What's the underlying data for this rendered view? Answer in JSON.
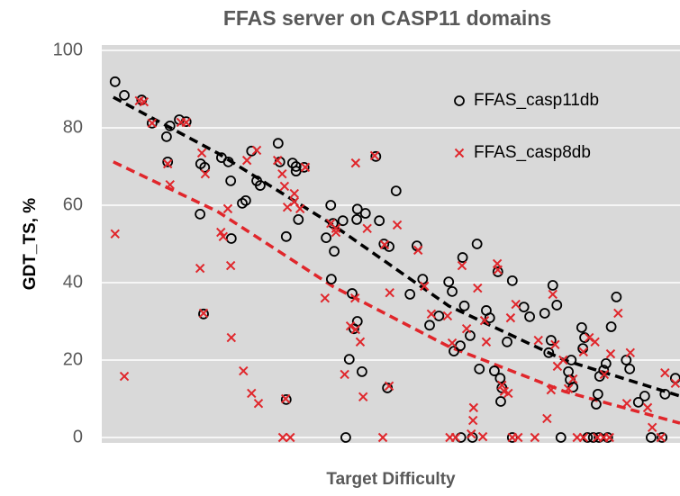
{
  "chart_data": {
    "type": "scatter",
    "title": "FFAS server on CASP11 domains",
    "x_label": "Target Difficulty",
    "y_label": "GDT_TS, %",
    "xlim": [
      0,
      100
    ],
    "ylim": [
      0,
      100
    ],
    "yticks": [
      0,
      20,
      40,
      60,
      80,
      100
    ],
    "grid": true,
    "legend": "upper right",
    "series": [
      {
        "name": "FFAS_casp11db",
        "color": "#000000",
        "marker": "circle",
        "x": [
          2.3,
          3.9,
          6.9,
          8.7,
          11.2,
          11.8,
          13.4,
          14.6,
          11.4,
          17.1,
          17.8,
          17,
          17.6,
          20.7,
          21.9,
          22.3,
          24.9,
          24.3,
          22.4,
          25.9,
          26.8,
          27.4,
          30.5,
          30.8,
          31.9,
          31.9,
          33.6,
          33.6,
          33,
          35,
          34,
          38.8,
          39.6,
          40.2,
          40,
          39.7,
          41.7,
          42.2,
          42.8,
          43.3,
          43.6,
          44.1,
          44.2,
          44.2,
          45,
          45.6,
          47.4,
          48,
          48.8,
          49.7,
          49.4,
          50.9,
          53.3,
          54.5,
          55.5,
          56.7,
          58.3,
          60,
          60.6,
          60.9,
          62,
          62.1,
          62.4,
          62.7,
          63.7,
          64.1,
          64.9,
          65.3,
          66.5,
          67.1,
          67.9,
          68.5,
          68.9,
          69,
          69.2,
          70.1,
          71,
          71,
          73,
          74,
          76.6,
          77.3,
          77.7,
          78,
          78.7,
          79.4,
          80.7,
          81,
          81.2,
          81.5,
          83,
          83.5,
          83.2,
          84,
          85,
          86,
          85.5,
          85.8,
          86.8,
          87.2,
          86.1,
          87.5,
          88.1,
          89,
          90.7,
          91.3,
          92.8,
          93.9,
          95,
          96.9,
          97.4,
          99.2
        ],
        "values": [
          91.9,
          88.4,
          87.2,
          81.2,
          77.7,
          80.5,
          82.1,
          81.6,
          71.2,
          70.7,
          69.8,
          57.7,
          31.9,
          72.3,
          71.2,
          66.3,
          61.2,
          60.5,
          51.4,
          74,
          66.3,
          65.1,
          76,
          71.2,
          51.9,
          9.8,
          70,
          68.8,
          70.9,
          69.8,
          56.3,
          51.6,
          60,
          48.1,
          55.3,
          40.9,
          56,
          0,
          20.2,
          37.2,
          28.1,
          56.3,
          59,
          30,
          17,
          57.9,
          72.6,
          56,
          50,
          49.3,
          12.8,
          63.7,
          37,
          49.5,
          40.9,
          29,
          31.4,
          40.2,
          37.7,
          22.3,
          23.7,
          0,
          46.5,
          34,
          26.3,
          0,
          50,
          17.7,
          32.8,
          30.9,
          17.2,
          42.8,
          15.3,
          9.3,
          12.8,
          24.7,
          40.5,
          0,
          33.7,
          31.2,
          32.1,
          21.9,
          25.1,
          39.3,
          34.2,
          0,
          17,
          14.9,
          20,
          13,
          28.4,
          25.8,
          23,
          0,
          0,
          0,
          8.6,
          11.2,
          17.4,
          19.1,
          15.8,
          0,
          28.6,
          36.3,
          20,
          17.7,
          9.1,
          10.7,
          0,
          0,
          11.2,
          15.3
        ]
      },
      {
        "name": "FFAS_casp8db",
        "color": "#e0262b",
        "marker": "x",
        "x": [
          2.3,
          3.9,
          6.5,
          7.3,
          8.7,
          11.4,
          11.8,
          13.7,
          14.6,
          17.3,
          17.9,
          17,
          17.6,
          20.6,
          21,
          21.8,
          22.3,
          22.4,
          24.5,
          25.1,
          25.9,
          27.1,
          26.8,
          30.4,
          31.2,
          31.6,
          32.1,
          33.3,
          33.3,
          34.3,
          35.2,
          31.3,
          32.6,
          31.8,
          38.6,
          39.6,
          40.5,
          40.5,
          42,
          43,
          43.9,
          43.8,
          43.9,
          44.7,
          45.2,
          45.9,
          47.2,
          48.6,
          48.9,
          49.7,
          51.1,
          49.8,
          54.7,
          55.8,
          57,
          59.8,
          60.6,
          60.2,
          61.2,
          62.3,
          63.1,
          63.9,
          64.2,
          64.3,
          65.9,
          65,
          66.2,
          66.5,
          68.4,
          68.5,
          69.2,
          69.6,
          70.3,
          72,
          71,
          70.7,
          71.6,
          74.9,
          75.5,
          77,
          77.7,
          78,
          78.4,
          78.8,
          79.8,
          80.7,
          81.5,
          82.2,
          83.3,
          83.3,
          84.3,
          85.3,
          85.7,
          86.8,
          87.8,
          86.9,
          88,
          89.3,
          90.8,
          91.4,
          94.4,
          95.2,
          97.4,
          96.7,
          99.2
        ],
        "values": [
          52.6,
          15.8,
          87,
          86.7,
          81.2,
          70.7,
          65.3,
          81.4,
          81.4,
          73.5,
          68.1,
          43.7,
          32.1,
          53,
          51.9,
          59.1,
          44.4,
          25.8,
          17.2,
          71.6,
          11.4,
          8.8,
          74.2,
          71.6,
          68.1,
          64.9,
          59.5,
          63,
          60.9,
          59.1,
          69.8,
          0,
          0,
          10,
          36,
          55.3,
          54,
          53,
          16.3,
          28.8,
          70.9,
          36,
          27.9,
          24.7,
          10.5,
          54,
          72.8,
          0,
          49.8,
          13.3,
          54.9,
          37.4,
          48.4,
          39.1,
          31.9,
          31.4,
          24.4,
          0,
          0,
          44.4,
          28.1,
          0.9,
          4.4,
          7.7,
          0.2,
          38.6,
          30.2,
          24.7,
          44.9,
          43.3,
          13.5,
          11.9,
          11.4,
          0,
          0,
          30.9,
          34.4,
          0,
          25.1,
          4.9,
          12.3,
          37,
          24,
          18.4,
          20,
          12.6,
          15.1,
          0,
          0,
          22.1,
          25.8,
          24.7,
          0,
          0,
          0,
          16.3,
          21.6,
          32.1,
          8.8,
          21.9,
          7.7,
          2.6,
          16.7,
          0,
          14
        ]
      }
    ],
    "trendlines": [
      {
        "color": "#000000",
        "x": [
          2,
          20,
          40,
          60,
          80,
          100
        ],
        "values": [
          87.9,
          73.5,
          54.9,
          34,
          20,
          10.7
        ]
      },
      {
        "color": "#e0262b",
        "x": [
          2,
          20,
          40,
          60,
          80,
          100
        ],
        "values": [
          71.2,
          58.4,
          39,
          23.5,
          11.9,
          3.7
        ]
      }
    ]
  }
}
